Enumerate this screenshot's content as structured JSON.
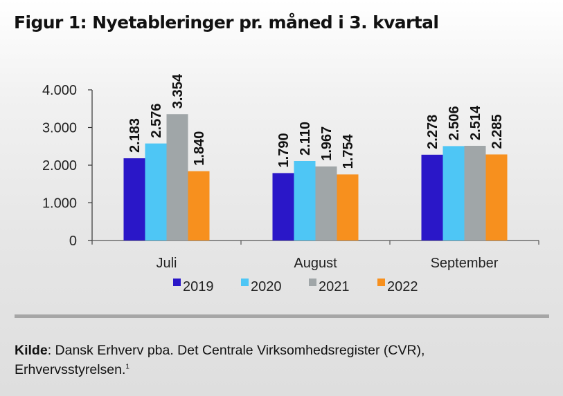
{
  "title": "Figur 1: Nyetableringer pr. måned i 3. kvartal",
  "chart_data": {
    "type": "bar",
    "title": "Figur 1: Nyetableringer pr. måned i 3. kvartal",
    "xlabel": "",
    "ylabel": "",
    "categories": [
      "Juli",
      "August",
      "September"
    ],
    "series": [
      {
        "name": "2019",
        "color": "#2a17c8",
        "values": [
          2183,
          1790,
          2278
        ],
        "labels": [
          "2.183",
          "1.790",
          "2.278"
        ]
      },
      {
        "name": "2020",
        "color": "#4ec6f5",
        "values": [
          2576,
          2110,
          2506
        ],
        "labels": [
          "2.576",
          "2.110",
          "2.506"
        ]
      },
      {
        "name": "2021",
        "color": "#a0a6a8",
        "values": [
          3354,
          1967,
          2514
        ],
        "labels": [
          "3.354",
          "1.967",
          "2.514"
        ]
      },
      {
        "name": "2022",
        "color": "#f7901e",
        "values": [
          1840,
          1754,
          2285
        ],
        "labels": [
          "1.840",
          "1.754",
          "2.285"
        ]
      }
    ],
    "ylim": [
      0,
      4000
    ],
    "yticks": [
      0,
      1000,
      2000,
      3000,
      4000
    ],
    "ytick_labels": [
      "0",
      "1.000",
      "2.000",
      "3.000",
      "4.000"
    ],
    "grid": false,
    "legend_position": "bottom-center",
    "data_labels": "rotated-vertical"
  },
  "source": {
    "label": "Kilde",
    "text": ": Dansk Erhverv pba. Det Centrale Virksomhedsregister (CVR),",
    "text2": "Erhvervsstyrelsen.",
    "footnote": "1"
  }
}
